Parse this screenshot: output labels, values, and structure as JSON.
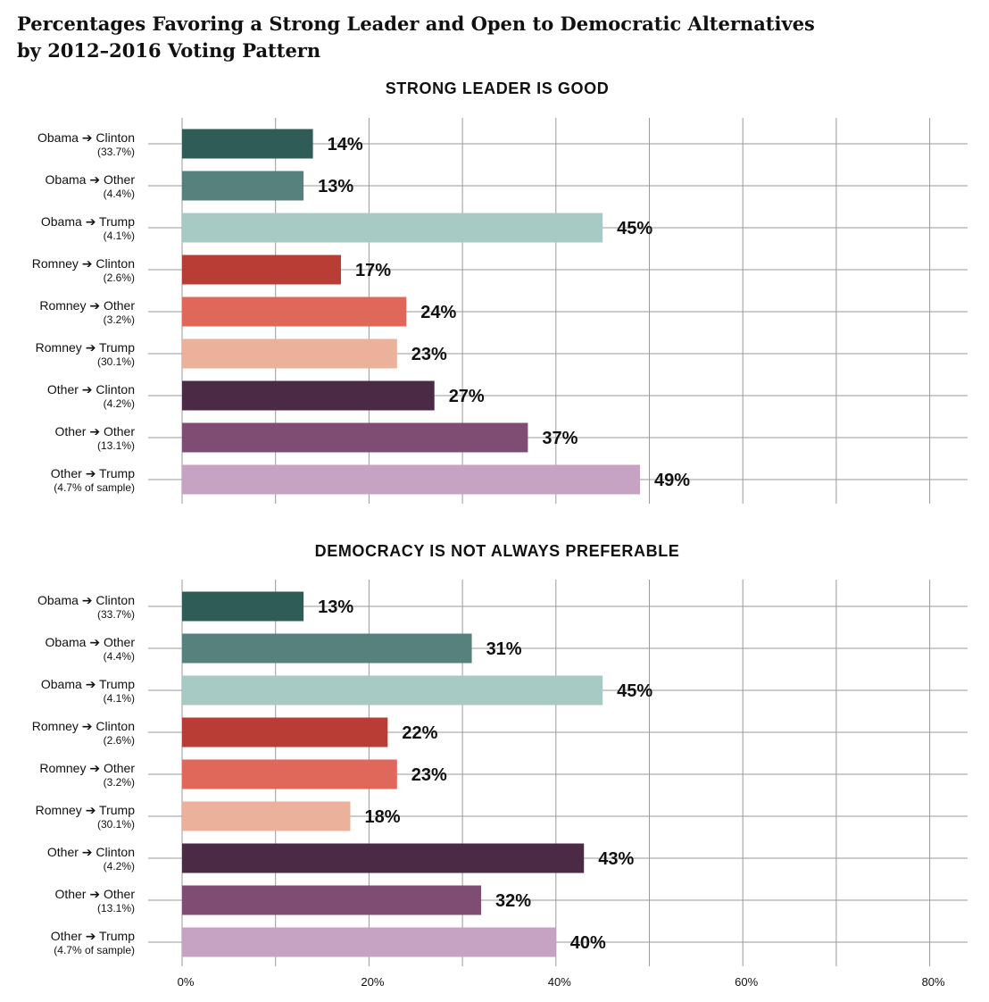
{
  "title_line1": "Percentages Favoring a Strong Leader and Open to Democratic Alternatives",
  "title_line2": "by 2012–2016 Voting Pattern",
  "chart_data": [
    {
      "type": "bar",
      "orientation": "horizontal",
      "title": "STRONG LEADER IS GOOD",
      "categories": [
        {
          "from": "Obama",
          "to": "Clinton",
          "share": "(33.7%)"
        },
        {
          "from": "Obama",
          "to": "Other",
          "share": "(4.4%)"
        },
        {
          "from": "Obama",
          "to": "Trump",
          "share": "(4.1%)"
        },
        {
          "from": "Romney",
          "to": "Clinton",
          "share": "(2.6%)"
        },
        {
          "from": "Romney",
          "to": "Other",
          "share": "(3.2%)"
        },
        {
          "from": "Romney",
          "to": "Trump",
          "share": "(30.1%)"
        },
        {
          "from": "Other",
          "to": "Clinton",
          "share": "(4.2%)"
        },
        {
          "from": "Other",
          "to": "Other",
          "share": "(13.1%)"
        },
        {
          "from": "Other",
          "to": "Trump",
          "share": "(4.7% of sample)"
        }
      ],
      "values": [
        14,
        13,
        45,
        17,
        24,
        23,
        27,
        37,
        49
      ],
      "value_labels": [
        "14%",
        "13%",
        "45%",
        "17%",
        "24%",
        "23%",
        "27%",
        "37%",
        "49%"
      ],
      "colors": [
        "#2f5c57",
        "#56817d",
        "#a8cac5",
        "#b93c35",
        "#e0685a",
        "#ecb19b",
        "#4a2a44",
        "#7f4d73",
        "#c6a2c3"
      ],
      "xlim": [
        0,
        84
      ],
      "grid": true
    },
    {
      "type": "bar",
      "orientation": "horizontal",
      "title": "DEMOCRACY IS NOT ALWAYS PREFERABLE",
      "categories": [
        {
          "from": "Obama",
          "to": "Clinton",
          "share": "(33.7%)"
        },
        {
          "from": "Obama",
          "to": "Other",
          "share": "(4.4%)"
        },
        {
          "from": "Obama",
          "to": "Trump",
          "share": "(4.1%)"
        },
        {
          "from": "Romney",
          "to": "Clinton",
          "share": "(2.6%)"
        },
        {
          "from": "Romney",
          "to": "Other",
          "share": "(3.2%)"
        },
        {
          "from": "Romney",
          "to": "Trump",
          "share": "(30.1%)"
        },
        {
          "from": "Other",
          "to": "Clinton",
          "share": "(4.2%)"
        },
        {
          "from": "Other",
          "to": "Other",
          "share": "(13.1%)"
        },
        {
          "from": "Other",
          "to": "Trump",
          "share": "(4.7% of sample)"
        }
      ],
      "values": [
        13,
        31,
        45,
        22,
        23,
        18,
        43,
        32,
        40
      ],
      "value_labels": [
        "13%",
        "31%",
        "45%",
        "22%",
        "23%",
        "18%",
        "43%",
        "32%",
        "40%"
      ],
      "colors": [
        "#2f5c57",
        "#56817d",
        "#a8cac5",
        "#b93c35",
        "#e0685a",
        "#ecb19b",
        "#4a2a44",
        "#7f4d73",
        "#c6a2c3"
      ],
      "xlim": [
        0,
        84
      ],
      "grid": true,
      "xticks": [
        0,
        20,
        40,
        60,
        80
      ],
      "xtick_labels": [
        "0%",
        "20%",
        "40%",
        "60%",
        "80%"
      ]
    }
  ]
}
